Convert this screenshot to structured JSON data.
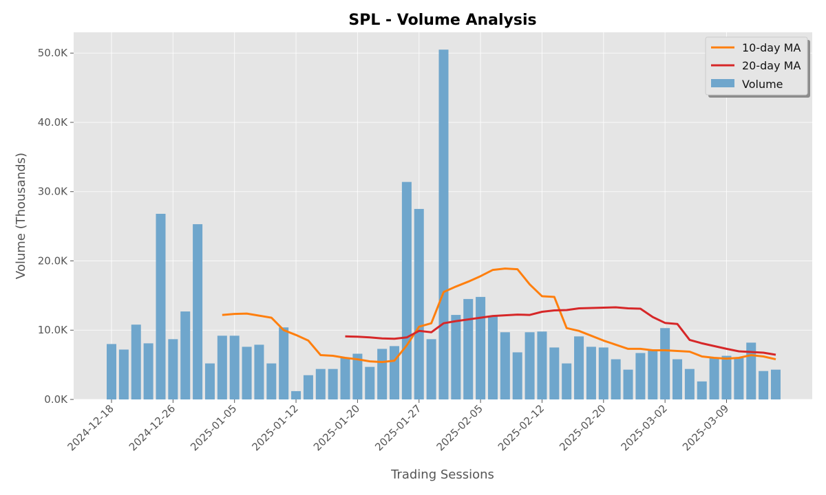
{
  "chart_data": {
    "type": "bar",
    "title": "SPL - Volume Analysis",
    "xlabel": "Trading Sessions",
    "ylabel": "Volume (Thousands)",
    "ylim": [
      0,
      53000
    ],
    "y_ticks": [
      0,
      10000,
      20000,
      30000,
      40000,
      50000
    ],
    "y_tick_labels": [
      "0.0K",
      "10.0K",
      "20.0K",
      "30.0K",
      "40.0K",
      "50.0K"
    ],
    "x_tick_labels": [
      "2024-12-18",
      "2024-12-26",
      "2025-01-05",
      "2025-01-12",
      "2025-01-20",
      "2025-01-27",
      "2025-02-05",
      "2025-02-12",
      "2025-02-20",
      "2025-03-02",
      "2025-03-09"
    ],
    "x_tick_sessions": [
      0,
      5,
      10,
      15,
      20,
      25,
      30,
      35,
      40,
      45,
      50
    ],
    "grid": true,
    "legend_position": "top-right",
    "legend": [
      "10-day MA",
      "20-day MA",
      "Volume"
    ],
    "series": [
      {
        "name": "Volume",
        "kind": "bar",
        "color": "#6fa6cc",
        "values": [
          8000,
          7200,
          10800,
          8100,
          26800,
          8700,
          12700,
          25300,
          5200,
          9200,
          9200,
          7600,
          7900,
          5200,
          10400,
          1200,
          3500,
          4400,
          4400,
          6000,
          6600,
          4700,
          7300,
          7700,
          31400,
          27500,
          8700,
          50500,
          12200,
          14500,
          14800,
          12000,
          9700,
          6800,
          9700,
          9800,
          7500,
          5200,
          9100,
          7600,
          7500,
          5800,
          4300,
          6700,
          7100,
          10300,
          5800,
          4400,
          2600,
          6000,
          6300,
          6000,
          8200,
          4100,
          4300
        ]
      },
      {
        "name": "10-day MA",
        "kind": "line",
        "color": "#ff7f0e",
        "values": [
          null,
          null,
          null,
          null,
          null,
          null,
          null,
          null,
          null,
          12200,
          12350,
          12400,
          12100,
          11800,
          10000,
          9300,
          8500,
          6400,
          6300,
          6000,
          5800,
          5500,
          5400,
          5600,
          7800,
          10500,
          11000,
          15500,
          16300,
          17000,
          17800,
          18700,
          18900,
          18800,
          16600,
          14900,
          14800,
          10300,
          9900,
          9200,
          8500,
          7900,
          7300,
          7300,
          7100,
          7100,
          7000,
          6900,
          6200,
          6000,
          5900,
          6000,
          6400,
          6200,
          5800
        ]
      },
      {
        "name": "20-day MA",
        "kind": "line",
        "color": "#d62728",
        "values": [
          null,
          null,
          null,
          null,
          null,
          null,
          null,
          null,
          null,
          null,
          null,
          null,
          null,
          null,
          null,
          null,
          null,
          null,
          null,
          9100,
          9050,
          8950,
          8800,
          8750,
          8950,
          9900,
          9700,
          11000,
          11300,
          11550,
          11800,
          12050,
          12150,
          12250,
          12200,
          12650,
          12850,
          12900,
          13150,
          13200,
          13250,
          13300,
          13150,
          13100,
          11900,
          11050,
          10900,
          8600,
          8100,
          7700,
          7300,
          6950,
          6850,
          6750,
          6450
        ]
      }
    ]
  }
}
